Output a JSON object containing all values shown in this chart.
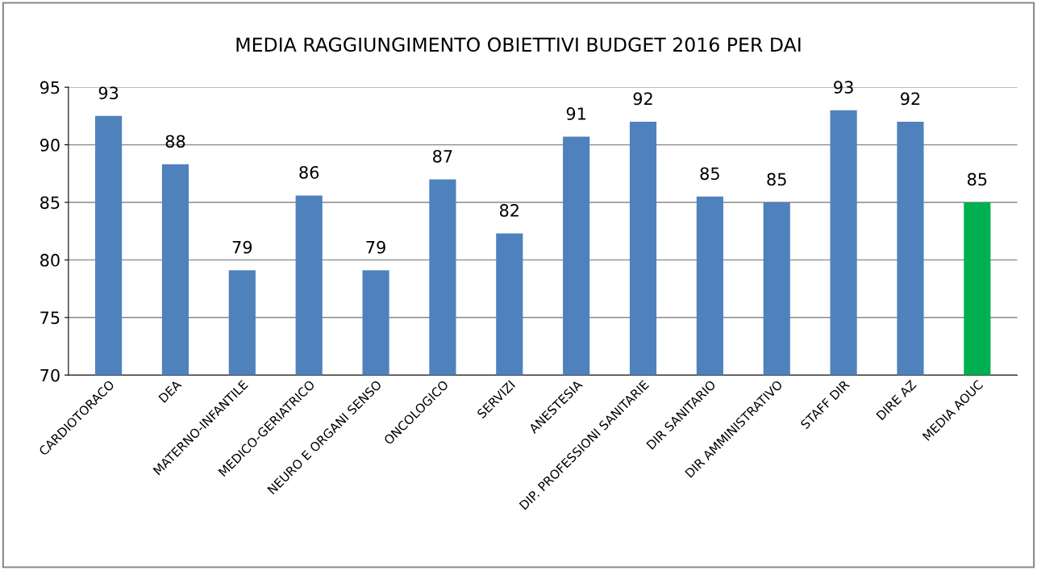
{
  "chart_data": {
    "type": "bar",
    "title": "MEDIA RAGGIUNGIMENTO OBIETTIVI BUDGET 2016 PER DAI",
    "categories": [
      "CARDIOTORACO",
      "DEA",
      "MATERNO-INFANTILE",
      "MEDICO-GERIATRICO",
      "NEURO E ORGANI SENSO",
      "ONCOLOGICO",
      "SERVIZI",
      "ANESTESIA",
      "DIP. PROFESSIONI SANITARIE",
      "DIR SANITARIO",
      "DIR AMMINISTRATIVO",
      "STAFF DIR",
      "DIRE AZ",
      "MEDIA AOUC"
    ],
    "values": [
      92.5,
      88.3,
      79.1,
      85.6,
      79.1,
      87.0,
      82.3,
      90.7,
      92.0,
      85.5,
      85.0,
      93.0,
      92.0,
      85.0
    ],
    "value_labels": [
      "93",
      "88",
      "79",
      "86",
      "79",
      "87",
      "82",
      "91",
      "92",
      "85",
      "85",
      "93",
      "92",
      "85"
    ],
    "colors": [
      "#4f81bd",
      "#4f81bd",
      "#4f81bd",
      "#4f81bd",
      "#4f81bd",
      "#4f81bd",
      "#4f81bd",
      "#4f81bd",
      "#4f81bd",
      "#4f81bd",
      "#4f81bd",
      "#4f81bd",
      "#4f81bd",
      "#00b050"
    ],
    "ylim": [
      70,
      95
    ],
    "yticks": [
      70,
      75,
      80,
      85,
      90,
      95
    ],
    "grid": "y",
    "legend": false
  }
}
